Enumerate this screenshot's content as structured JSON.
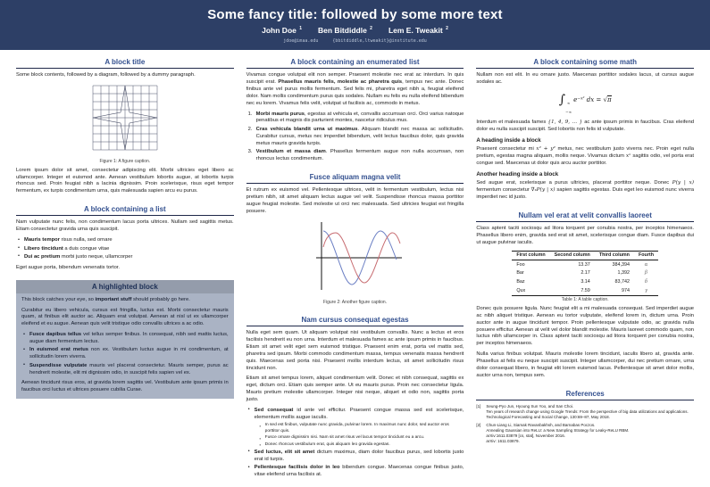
{
  "colors": {
    "header_bg": "#2d3f66",
    "header_text": "#ffffff",
    "email_text": "#b9c4d6",
    "block_title": "#33508f",
    "block_rule": "#1f2849",
    "highlight_bar_bg": "#949cab",
    "highlight_bar_text": "#1d2f55",
    "highlight_body_bg": "#aab3c4",
    "figure_line": "#4a5068",
    "plot_blue": "#6b7fc4",
    "plot_red": "#c76b70"
  },
  "header": {
    "title": "Some fancy title: followed by some more text",
    "authors": [
      {
        "name": "John Doe",
        "sup": "1"
      },
      {
        "name": "Ben Bitdiddle",
        "sup": "2"
      },
      {
        "name": "Lem E. Tweakit",
        "sup": "2"
      }
    ],
    "emails": [
      "jdoe@imaa.edu",
      "{bbitdiddle,ltweakit}@institute.edu"
    ]
  },
  "columns": [
    {
      "blocks": [
        {
          "title": "A block title",
          "content": [
            {
              "type": "p",
              "runs": [
                [
                  "r",
                  "Some block contents, followed by a diagram, followed by a dummy paragraph."
                ]
              ]
            },
            {
              "type": "figure",
              "figure": "grid-star",
              "caption": "Figure 1: A figure caption."
            },
            {
              "type": "p",
              "runs": [
                [
                  "r",
                  "Lorem ipsum dolor sit amet, consectetur adipiscing elit. Morbi ultricies eget libero ac ullamcorper. Integer et euismod ante. Aenean vestibulum lobortis augue, at lobortis turpis rhoncus sed. Proin feugiat nibh a lacinia dignissim. Proin scelerisque, risus eget tempor fermentum, ex turpis condimentum urna, quis malesuada sapien arcu eu purus."
                ]
              ]
            }
          ]
        },
        {
          "title": "A block containing a list",
          "content": [
            {
              "type": "p",
              "runs": [
                [
                  "r",
                  "Nam vulputate nunc felis, non condimentum lacus porta ultrices. Nullam sed sagittis metus. Etiam consectetur gravida urna quis suscipit."
                ]
              ]
            },
            {
              "type": "ul",
              "items": [
                {
                  "runs": [
                    [
                      "b",
                      "Mauris tempor"
                    ],
                    [
                      "r",
                      " risus nulla, sed ornare"
                    ]
                  ]
                },
                {
                  "runs": [
                    [
                      "b",
                      "Libero tincidunt"
                    ],
                    [
                      "r",
                      " a duis congue vitae"
                    ]
                  ]
                },
                {
                  "runs": [
                    [
                      "b",
                      "Dui ac pretium"
                    ],
                    [
                      "r",
                      " morbi justo neque, ullamcorper"
                    ]
                  ]
                }
              ]
            },
            {
              "type": "p",
              "runs": [
                [
                  "r",
                  "Eget augue porta, bibendum venenatis tortor."
                ]
              ]
            }
          ]
        },
        {
          "title": "A highlighted block",
          "variant": "highlight",
          "content": [
            {
              "type": "p",
              "runs": [
                [
                  "r",
                  "This block catches your eye, so "
                ],
                [
                  "b",
                  "important stuff"
                ],
                [
                  "r",
                  " should probably go here."
                ]
              ]
            },
            {
              "type": "p",
              "runs": [
                [
                  "r",
                  "Curabitur eu libero vehicula, cursus est fringilla, luctus est. Morbi consectetur mauris quam, at finibus elit auctor ac. Aliquam erat volutpat. Aenean at nisl ut ex ullamcorper eleifend et eu augue. Aenean quis velit tristique odio convallis ultrices a ac odio."
                ]
              ]
            },
            {
              "type": "ul",
              "items": [
                {
                  "runs": [
                    [
                      "b",
                      "Fusce dapibus tellus"
                    ],
                    [
                      "r",
                      " vel tellus semper finibus. In consequat, nibh sed mattis luctus, augue diam fermentum lectus."
                    ]
                  ]
                },
                {
                  "runs": [
                    [
                      "b",
                      "In euismod erat metus"
                    ],
                    [
                      "r",
                      " non ex. Vestibulum luctus augue in mi condimentum, at sollicitudin lorem viverra."
                    ]
                  ]
                },
                {
                  "runs": [
                    [
                      "b",
                      "Suspendisse vulputate"
                    ],
                    [
                      "r",
                      " mauris vel placerat consectetur. Mauris semper, purus ac hendrerit molestie, elit mi dignissim odio, in suscipit felis sapien vel ex."
                    ]
                  ]
                }
              ]
            },
            {
              "type": "p",
              "runs": [
                [
                  "r",
                  "Aenean tincidunt risus eros, at gravida lorem sagittis vel. Vestibulum ante ipsum primis in faucibus orci luctus et ultrices posuere cubilia Curae."
                ]
              ]
            }
          ]
        }
      ]
    },
    {
      "blocks": [
        {
          "title": "A block containing an enumerated list",
          "content": [
            {
              "type": "p",
              "runs": [
                [
                  "r",
                  "Vivamus congue volutpat elit non semper. Praesent molestie nec erat ac interdum. In quis suscipit erat. "
                ],
                [
                  "b",
                  "Phasellus mauris felis, molestie ac pharetra quis"
                ],
                [
                  "r",
                  ", tempus nec ante. Donec finibus ante vel purus mollis fermentum. Sed felis mi, pharetra eget nibh a, feugiat eleifend dolor. Nam mollis condimentum purus quis sodales. Nullam eu felis eu nulla eleifend bibendum nec eu lorem. Vivamus felis velit, volutpat ut facilisis ac, commodo in metus."
                ]
              ]
            },
            {
              "type": "ol",
              "items": [
                {
                  "runs": [
                    [
                      "b",
                      "Morbi mauris purus"
                    ],
                    [
                      "r",
                      ", egestas at vehicula et, convallis accumsan orci. Orci varius natoque penatibus et magnis dis parturient montes, nascetur ridiculus mus."
                    ]
                  ]
                },
                {
                  "runs": [
                    [
                      "b",
                      "Cras vehicula blandit urna ut maximus"
                    ],
                    [
                      "r",
                      ". Aliquam blandit nec massa ac sollicitudin. Curabitur cursus, metus nec imperdiet bibendum, velit lectus faucibus dolor, quis gravida metus mauris gravida turpis."
                    ]
                  ]
                },
                {
                  "runs": [
                    [
                      "b",
                      "Vestibulum et massa diam"
                    ],
                    [
                      "r",
                      ". Phasellus fermentum augue non nulla accumsan, non rhoncus lectus condimentum."
                    ]
                  ]
                }
              ]
            }
          ]
        },
        {
          "title": "Fusce aliquam magna velit",
          "content": [
            {
              "type": "p",
              "runs": [
                [
                  "r",
                  "Et rutrum ex euismod vel. Pellentesque ultrices, velit in fermentum vestibulum, lectus nisi pretium nibh, sit amet aliquam lectus augue vel velit. Suspendisse rhoncus massa porttitor augue feugiat molestie. Sed molestie ut orci nec malesuada. Sed ultricies feugiat est fringilla posuere."
                ]
              ]
            },
            {
              "type": "figure",
              "figure": "sine-plot",
              "caption": "Figure 2: Another figure caption."
            }
          ]
        },
        {
          "title": "Nam cursus consequat egestas",
          "content": [
            {
              "type": "p",
              "runs": [
                [
                  "r",
                  "Nulla eget sem quam. Ut aliquam volutpat nisi vestibulum convallis. Nunc a lectus et eros facilisis hendrerit eu non urna. Interdum et malesuada fames ac ante ipsum primis in faucibus. Etiam sit amet velit eget sem euismod tristique. Praesent enim erat, porta vel mattis sed, pharetra sed ipsum. Morbi commodo condimentum massa, tempus venenatis massa hendrerit quis. Maecenas sed porta nisi. Praesent mollis interdum lectus, sit amet sollicitudin risus tincidunt non."
                ]
              ]
            },
            {
              "type": "p",
              "runs": [
                [
                  "r",
                  "Etiam sit amet tempus lorem, aliquet condimentum velit. Donec et nibh consequat, sagittis ex eget, dictum orci. Etiam quis semper ante. Ut eu mauris purus. Proin nec consectetur ligula. Mauris pretium molestie ullamcorper. Integer nisi neque, aliquet et odio non, sagittis porta justo."
                ]
              ]
            },
            {
              "type": "ul",
              "items": [
                {
                  "runs": [
                    [
                      "b",
                      "Sed consequat"
                    ],
                    [
                      "r",
                      " id ante vel efficitur. Praesent congue massa sed est scelerisque, elementum mollis augue iaculis."
                    ]
                  ],
                  "sub": [
                    "In sed est finibus, vulputate nunc gravida, pulvinar lorem. In maximus nunc dolor, sed auctor eros porttitor quis.",
                    "Fusce ornare dignissim nisi. Nam sit amet risus vel lacus tempor tincidunt eu a arcu.",
                    "Donec rhoncus vestibulum erat, quis aliquam leo gravida egestas."
                  ]
                },
                {
                  "runs": [
                    [
                      "b",
                      "Sed luctus, elit sit amet"
                    ],
                    [
                      "r",
                      " dictum maximus, diam dolor faucibus purus, sed lobortis justo erat id turpis."
                    ]
                  ]
                },
                {
                  "runs": [
                    [
                      "b",
                      "Pellentesque facilisis dolor in leo"
                    ],
                    [
                      "r",
                      " bibendum congue. Maecenas congue finibus justo, vitae eleifend urna facilisis at."
                    ]
                  ]
                }
              ]
            }
          ]
        }
      ]
    },
    {
      "blocks": [
        {
          "title": "A block containing some math",
          "content": [
            {
              "type": "p",
              "runs": [
                [
                  "r",
                  "Nullam non est elit. In eu ornare justo. Maecenas porttitor sodales lacus, ut cursus augue sodales ac."
                ]
              ]
            },
            {
              "type": "equation",
              "tokens": [
                [
                  "int",
                  "∞",
                  "−∞"
                ],
                [
                  "t",
                  "e"
                ],
                [
                  "sup",
                  "−x²"
                ],
                [
                  "t",
                  " dx = "
                ],
                [
                  "sqrt",
                  "π"
                ]
              ]
            },
            {
              "type": "p",
              "runs": [
                [
                  "r",
                  "Interdum et malesuada fames "
                ],
                [
                  "m",
                  "{1, 4, 9, … }"
                ],
                [
                  "r",
                  " ac ante ipsum primis in faucibus. Cras eleifend dolor eu nulla suscipit suscipit. Sed lobortis non felis id vulputate."
                ]
              ]
            },
            {
              "type": "h4",
              "text": "A heading inside a block"
            },
            {
              "type": "p",
              "runs": [
                [
                  "r",
                  "Praesent consectetur mi "
                ],
                [
                  "m",
                  "x² + y²"
                ],
                [
                  "r",
                  " metus, nec vestibulum justo viverra nec. Proin eget nulla pretium, egestas magna aliquam, mollis neque. Vivamus dictum "
                ],
                [
                  "m",
                  "xⁿ"
                ],
                [
                  "r",
                  " sagittis odio, vel porta erat congue sed. Maecenas ut dolor quis arcu auctor porttitor."
                ]
              ]
            },
            {
              "type": "h4",
              "text": "Another heading inside a block"
            },
            {
              "type": "p",
              "runs": [
                [
                  "r",
                  "Sed augue erat, scelerisque a purus ultricies, placerat porttitor neque. Donec "
                ],
                [
                  "m",
                  "P(y | x)"
                ],
                [
                  "r",
                  " fermentum consectetur "
                ],
                [
                  "m",
                  "∇ₓP(y | x)"
                ],
                [
                  "r",
                  " sapien sagittis egestas. Duis eget leo euismod nunc viverra imperdiet nec id justo."
                ]
              ]
            }
          ]
        },
        {
          "title": "Nullam vel erat at velit convallis laoreet",
          "content": [
            {
              "type": "p",
              "runs": [
                [
                  "r",
                  "Class aptent taciti sociosqu ad litora torquent per conubia nostra, per inceptos himenaeos. Phasellus libero enim, gravida sed erat sit amet, scelerisque congue diam. Fusce dapibus dui ut augue pulvinar iaculis."
                ]
              ]
            },
            {
              "type": "table",
              "headers": [
                "First column",
                "Second column",
                "Third column",
                "Fourth"
              ],
              "rows": [
                [
                  "Foo",
                  "13.37",
                  "384,394",
                  "α"
                ],
                [
                  "Bar",
                  "2.17",
                  "1,392",
                  "β"
                ],
                [
                  "Baz",
                  "3.14",
                  "83,742",
                  "δ"
                ],
                [
                  "Qux",
                  "7.59",
                  "974",
                  "γ"
                ]
              ],
              "caption": "Table 1: A table caption."
            },
            {
              "type": "p",
              "runs": [
                [
                  "r",
                  "Donec quis posuere ligula. Nunc feugiat elit a mi malesuada consequat. Sed imperdiet augue ac nibh aliquet tristique. Aenean eu tortor vulputate, eleifend lorem in, dictum urna. Proin auctor ante in augue tincidunt tempor. Proin pellentesque vulputate odio, ac gravida nulla posuere efficitur. Aenean at velit vel dolor blandit molestie. Mauris laoreet commodo quam, non luctus nibh ullamcorper in. Class aptent taciti sociosqu ad litora torquent per conubia nostra, per inceptos himenaeos."
                ]
              ]
            },
            {
              "type": "p",
              "runs": [
                [
                  "r",
                  "Nulla varius finibus volutpat. Mauris molestie lorem tincidunt, iaculis libero at, gravida ante. Phasellus at felis eu neque suscipit suscipit. Integer ullamcorper, dui nec pretium ornare, urna dolor consequat libero, in feugiat elit lorem euismod lacus. Pellentesque sit amet dolor mollis, auctor urna non, tempus sem."
                ]
              ]
            }
          ]
        },
        {
          "title": "References",
          "content": [
            {
              "type": "refs",
              "items": [
                {
                  "label": "[1]",
                  "lines": [
                    "Seung-Pyo Jun, Hyoung Sun Yoo, and San Choi.",
                    "Ten years of research change using Google Trends: From the perspective of big data utilizations and applications.",
                    "Technological Forecasting and Social Change, 130:69–87, May 2018."
                  ]
                },
                {
                  "label": "[2]",
                  "lines": [
                    "Chun-Liang Li, Siamak Ravanbakhsh, and Barnabas Poczos.",
                    "Annealing Gaussian into ReLU: a New Sampling Strategy for Leaky-ReLU RBM.",
                    "arXiv:1611.03879 [cs, stat], November 2016.",
                    "arXiv: 1611.03879."
                  ]
                }
              ]
            }
          ]
        }
      ]
    }
  ]
}
